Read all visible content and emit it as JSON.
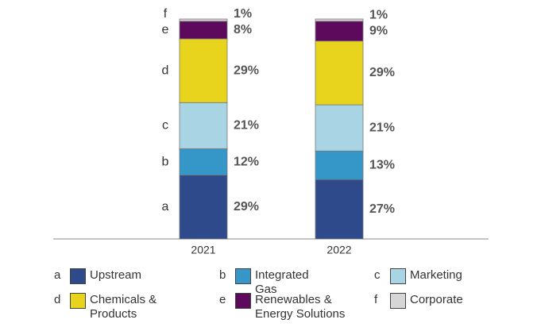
{
  "chart_data": {
    "type": "stacked_bar",
    "categories": [
      "2021",
      "2022"
    ],
    "ylim": [
      0,
      100
    ],
    "series": [
      {
        "key": "a",
        "name": "Upstream",
        "color": "#2f4a8a",
        "values": [
          29,
          27
        ],
        "value_labels": [
          "29%",
          "27%"
        ]
      },
      {
        "key": "b",
        "name": "Integrated Gas",
        "color": "#3596c8",
        "values": [
          12,
          13
        ],
        "value_labels": [
          "12%",
          "13%"
        ]
      },
      {
        "key": "c",
        "name": "Marketing",
        "color": "#a9d4e4",
        "values": [
          21,
          21
        ],
        "value_labels": [
          "21%",
          "21%"
        ]
      },
      {
        "key": "d",
        "name": "Chemicals & Products",
        "color": "#e8d41c",
        "values": [
          29,
          29
        ],
        "value_labels": [
          "29%",
          "29%"
        ]
      },
      {
        "key": "e",
        "name": "Renewables & Energy Solutions",
        "color": "#5e0a5c",
        "values": [
          8,
          9
        ],
        "value_labels": [
          "8%",
          "9%"
        ]
      },
      {
        "key": "f",
        "name": "Corporate",
        "color": "#d6d6d6",
        "values": [
          1,
          1
        ],
        "value_labels": [
          "1%",
          "1%"
        ]
      }
    ]
  }
}
